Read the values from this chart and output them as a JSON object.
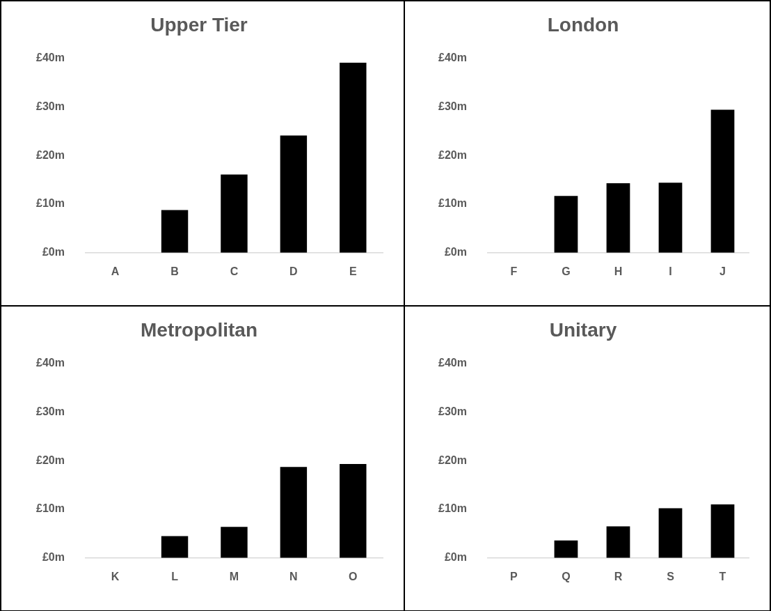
{
  "chart_data": [
    {
      "type": "bar",
      "title": "Upper Tier",
      "categories": [
        "A",
        "B",
        "C",
        "D",
        "E"
      ],
      "values": [
        0,
        8.8,
        16.1,
        24.1,
        39.1
      ],
      "color": "#000000",
      "ylim": [
        0,
        40
      ],
      "yticks": [
        {
          "value": 0,
          "label": "£0m"
        },
        {
          "value": 10,
          "label": "£10m"
        },
        {
          "value": 20,
          "label": "£20m"
        },
        {
          "value": 30,
          "label": "£30m"
        },
        {
          "value": 40,
          "label": "£40m"
        }
      ]
    },
    {
      "type": "bar",
      "title": "London",
      "categories": [
        "F",
        "G",
        "H",
        "I",
        "J"
      ],
      "values": [
        0,
        11.7,
        14.3,
        14.4,
        29.4
      ],
      "color": "#000000",
      "ylim": [
        0,
        40
      ],
      "yticks": [
        {
          "value": 0,
          "label": "£0m"
        },
        {
          "value": 10,
          "label": "£10m"
        },
        {
          "value": 20,
          "label": "£20m"
        },
        {
          "value": 30,
          "label": "£30m"
        },
        {
          "value": 40,
          "label": "£40m"
        }
      ]
    },
    {
      "type": "bar",
      "title": "Metropolitan",
      "categories": [
        "K",
        "L",
        "M",
        "N",
        "O"
      ],
      "values": [
        0,
        4.5,
        6.4,
        18.7,
        19.3
      ],
      "color": "#000000",
      "ylim": [
        0,
        40
      ],
      "yticks": [
        {
          "value": 0,
          "label": "£0m"
        },
        {
          "value": 10,
          "label": "£10m"
        },
        {
          "value": 20,
          "label": "£20m"
        },
        {
          "value": 30,
          "label": "£30m"
        },
        {
          "value": 40,
          "label": "£40m"
        }
      ]
    },
    {
      "type": "bar",
      "title": "Unitary",
      "categories": [
        "P",
        "Q",
        "R",
        "S",
        "T"
      ],
      "values": [
        0,
        3.6,
        6.5,
        10.2,
        11.0
      ],
      "color": "#000000",
      "ylim": [
        0,
        40
      ],
      "yticks": [
        {
          "value": 0,
          "label": "£0m"
        },
        {
          "value": 10,
          "label": "£10m"
        },
        {
          "value": 20,
          "label": "£20m"
        },
        {
          "value": 30,
          "label": "£30m"
        },
        {
          "value": 40,
          "label": "£40m"
        }
      ]
    }
  ]
}
